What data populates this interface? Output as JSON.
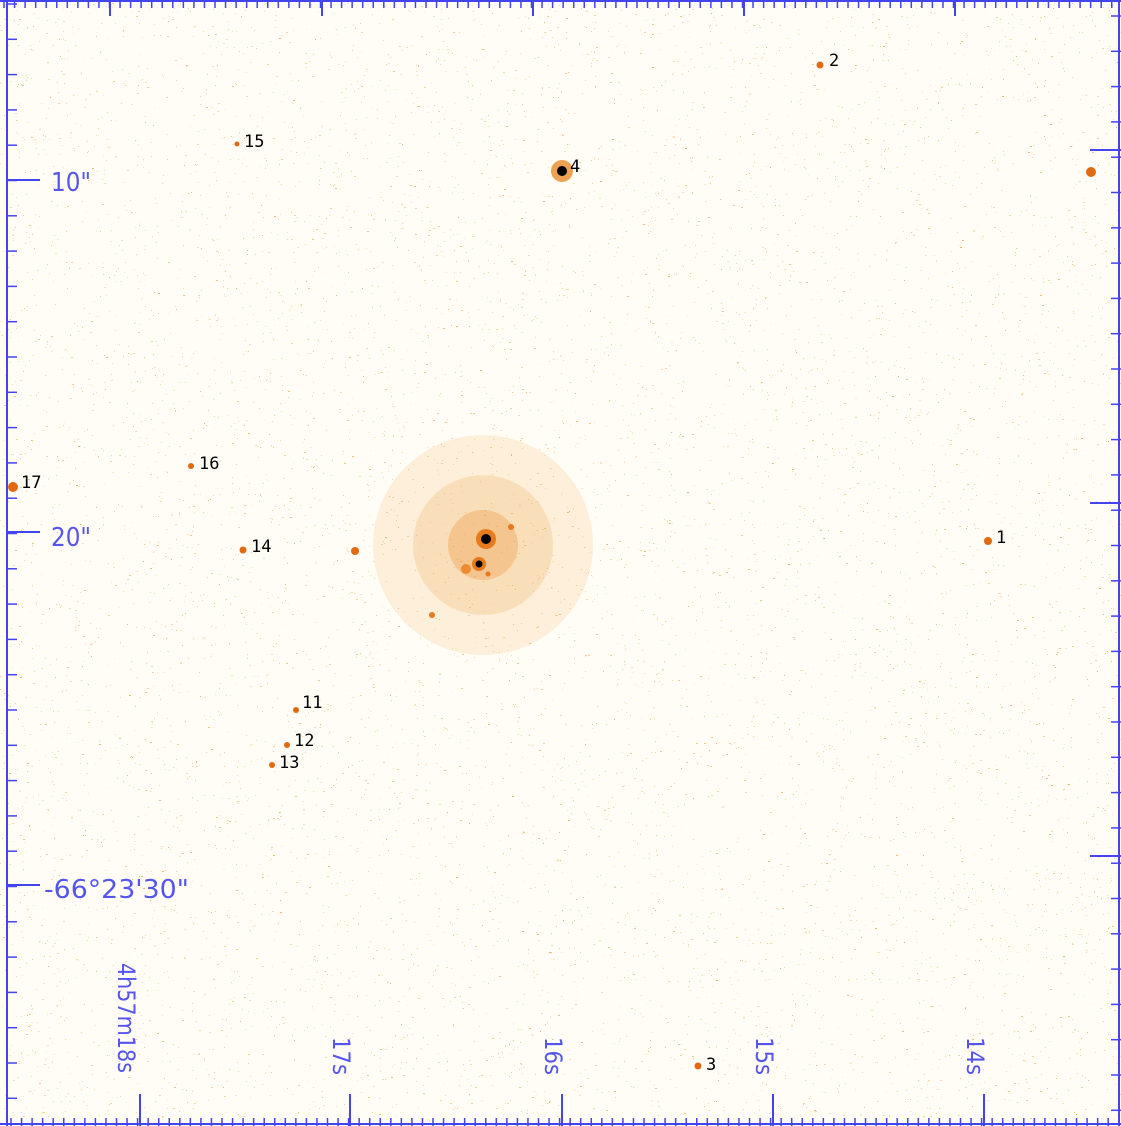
{
  "image": {
    "kind": "astronomical-finder-chart",
    "background_color": "#fffdf6",
    "noise_color": "#f0c070",
    "star_color": "#e87a1e",
    "star_core_color": "#000000",
    "axis_color": "#4444ee",
    "label_color": "#000000"
  },
  "axis_labels": {
    "dec_10": "10\"",
    "dec_20": "20\"",
    "dec_main": "-66°23'30\"",
    "ra_18": "4h57m18s",
    "ra_17": "17s",
    "ra_16": "16s",
    "ra_15": "15s",
    "ra_14": "14s"
  },
  "stars": [
    {
      "id": "star-1",
      "label": "1"
    },
    {
      "id": "star-2",
      "label": "2"
    },
    {
      "id": "star-3",
      "label": "3"
    },
    {
      "id": "star-4",
      "label": "4"
    },
    {
      "id": "star-11",
      "label": "11"
    },
    {
      "id": "star-12",
      "label": "12"
    },
    {
      "id": "star-13",
      "label": "13"
    },
    {
      "id": "star-14",
      "label": "14"
    },
    {
      "id": "star-15",
      "label": "15"
    },
    {
      "id": "star-16",
      "label": "16"
    },
    {
      "id": "star-17",
      "label": "17"
    }
  ]
}
